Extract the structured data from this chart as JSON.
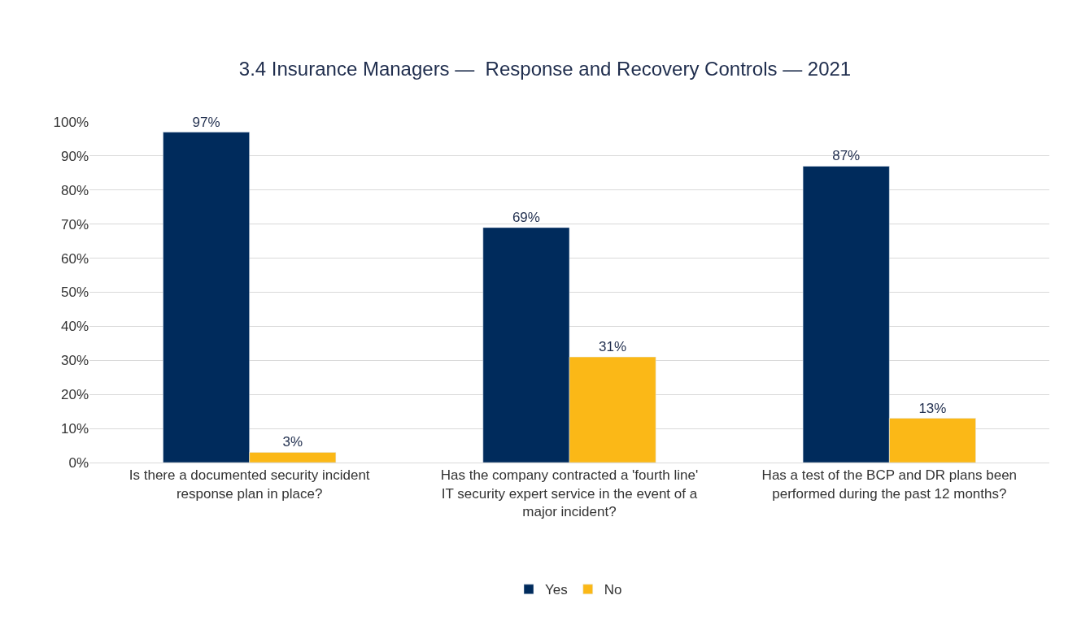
{
  "chart_data": {
    "type": "bar",
    "title": "3.4 Insurance Managers —  Response and Recovery Controls — 2021",
    "categories": [
      "Is there a documented security incident response plan in place?",
      "Has the company contracted a 'fourth line' IT security expert service in the event of a major incident?",
      "Has a test of the BCP and DR plans been performed during the past 12 months?"
    ],
    "series": [
      {
        "name": "Yes",
        "color": "#002b5c",
        "values": [
          97,
          69,
          87
        ],
        "value_labels": [
          "97%",
          "69%",
          "87%"
        ]
      },
      {
        "name": "No",
        "color": "#fbb817",
        "values": [
          3,
          31,
          13
        ],
        "value_labels": [
          "3%",
          "31%",
          "13%"
        ]
      }
    ],
    "ylim": [
      0,
      100
    ],
    "yticks": [
      {
        "value": 0,
        "label": "0%"
      },
      {
        "value": 10,
        "label": "10%"
      },
      {
        "value": 20,
        "label": "20%"
      },
      {
        "value": 30,
        "label": "30%"
      },
      {
        "value": 40,
        "label": "40%"
      },
      {
        "value": 50,
        "label": "50%"
      },
      {
        "value": 60,
        "label": "60%"
      },
      {
        "value": 70,
        "label": "70%"
      },
      {
        "value": 80,
        "label": "80%"
      },
      {
        "value": 90,
        "label": "90%"
      },
      {
        "value": 100,
        "label": "100%"
      }
    ],
    "grid": "y",
    "legend": "bottom"
  }
}
